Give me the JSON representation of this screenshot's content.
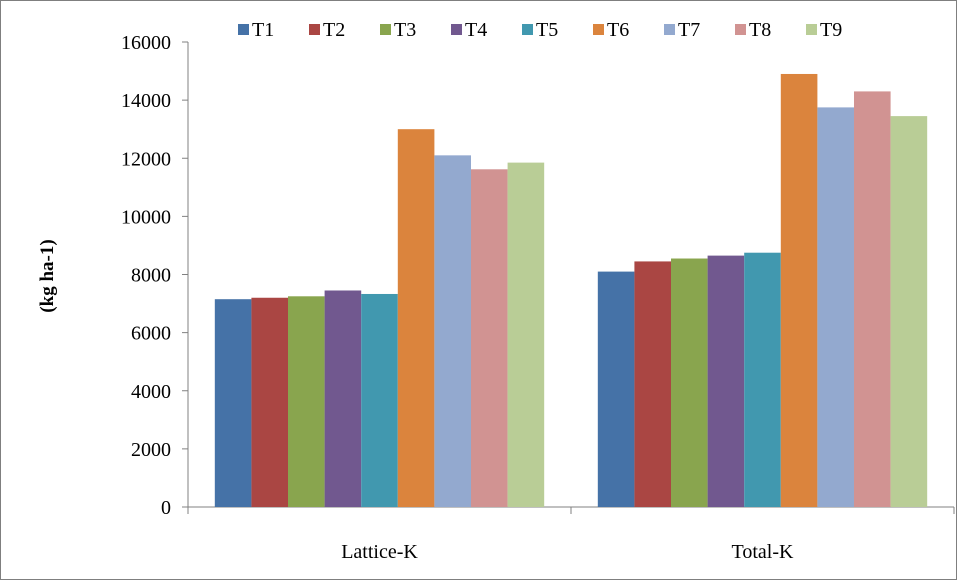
{
  "chart_data": {
    "type": "bar",
    "title": "",
    "xlabel": "",
    "ylabel": "(kg ha-1)",
    "ylim": [
      0,
      16000
    ],
    "yticks": [
      0,
      2000,
      4000,
      6000,
      8000,
      10000,
      12000,
      14000,
      16000
    ],
    "grid": false,
    "legend_position": "top",
    "categories": [
      "Lattice-K",
      "Total-K"
    ],
    "series": [
      {
        "name": "T1",
        "color": "#4572A7",
        "values": [
          7150,
          8100
        ]
      },
      {
        "name": "T2",
        "color": "#AA4643",
        "values": [
          7200,
          8450
        ]
      },
      {
        "name": "T3",
        "color": "#89A54E",
        "values": [
          7250,
          8550
        ]
      },
      {
        "name": "T4",
        "color": "#71588F",
        "values": [
          7450,
          8650
        ]
      },
      {
        "name": "T5",
        "color": "#4198AF",
        "values": [
          7330,
          8750
        ]
      },
      {
        "name": "T6",
        "color": "#DB843D",
        "values": [
          13000,
          14900
        ]
      },
      {
        "name": "T7",
        "color": "#93A9CF",
        "values": [
          12100,
          13750
        ]
      },
      {
        "name": "T8",
        "color": "#D19392",
        "values": [
          11620,
          14300
        ]
      },
      {
        "name": "T9",
        "color": "#B9CD96",
        "values": [
          11850,
          13450
        ]
      }
    ]
  }
}
